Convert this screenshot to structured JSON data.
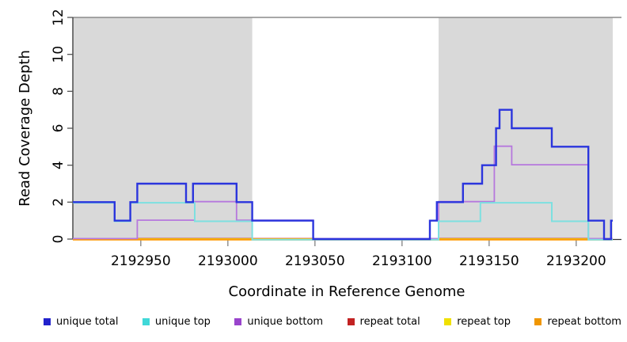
{
  "chart_data": {
    "type": "line",
    "subtype": "step-post",
    "title": "",
    "xlabel": "Coordinate in Reference Genome",
    "ylabel": "Read Coverage Depth",
    "xlim": [
      2192911,
      2193226
    ],
    "ylim": [
      0,
      12
    ],
    "x_ticks": [
      2192950,
      2193000,
      2193050,
      2193100,
      2193150,
      2193200
    ],
    "y_ticks": [
      0,
      2,
      4,
      6,
      8,
      10,
      12
    ],
    "grid": false,
    "legend_position": "bottom",
    "background": "#ffffff",
    "shaded_regions": [
      {
        "x_start": 2192911,
        "x_end": 2193014,
        "color": "#d9d9d9"
      },
      {
        "x_start": 2193121,
        "x_end": 2193221,
        "color": "#d9d9d9"
      }
    ],
    "series": [
      {
        "name": "repeat total",
        "color": "#cc2222",
        "line_width": 1.8,
        "points": [
          [
            2192911,
            0
          ],
          [
            2193221,
            0
          ]
        ]
      },
      {
        "name": "repeat top",
        "color": "#f2e100",
        "line_width": 1.8,
        "points": [
          [
            2192911,
            0
          ],
          [
            2193221,
            0
          ]
        ]
      },
      {
        "name": "repeat bottom",
        "color": "#ff9800",
        "line_width": 1.8,
        "points": [
          [
            2192911,
            0
          ],
          [
            2193221,
            0
          ]
        ]
      },
      {
        "name": "unique bottom",
        "color": "#b678dd",
        "line_width": 1.8,
        "points": [
          [
            2192911,
            0
          ],
          [
            2192948,
            1
          ],
          [
            2192981,
            2
          ],
          [
            2193005,
            1
          ],
          [
            2193049,
            0
          ],
          [
            2193121,
            2
          ],
          [
            2193153,
            5
          ],
          [
            2193163,
            4
          ],
          [
            2193207,
            0
          ],
          [
            2193221,
            0
          ]
        ]
      },
      {
        "name": "unique top",
        "color": "#7de0e0",
        "line_width": 2,
        "points": [
          [
            2192911,
            2
          ],
          [
            2192935,
            1
          ],
          [
            2192944,
            2
          ],
          [
            2192981,
            1
          ],
          [
            2193014,
            0
          ],
          [
            2193121,
            1
          ],
          [
            2193145,
            2
          ],
          [
            2193186,
            1
          ],
          [
            2193207,
            0
          ],
          [
            2193221,
            0
          ]
        ]
      },
      {
        "name": "unique total",
        "color": "#2b35dd",
        "line_width": 2.4,
        "points": [
          [
            2192911,
            2
          ],
          [
            2192935,
            1
          ],
          [
            2192944,
            2
          ],
          [
            2192948,
            3
          ],
          [
            2192976,
            2
          ],
          [
            2192980,
            3
          ],
          [
            2193005,
            2
          ],
          [
            2193014,
            1
          ],
          [
            2193049,
            0
          ],
          [
            2193116,
            1
          ],
          [
            2193120,
            2
          ],
          [
            2193135,
            3
          ],
          [
            2193146,
            4
          ],
          [
            2193154,
            6
          ],
          [
            2193156,
            7
          ],
          [
            2193163,
            6
          ],
          [
            2193186,
            5
          ],
          [
            2193207,
            1
          ],
          [
            2193216,
            0
          ],
          [
            2193220,
            1
          ],
          [
            2193221,
            1
          ]
        ]
      }
    ]
  },
  "legend": {
    "items": [
      {
        "label": "unique total",
        "color": "#2222cc"
      },
      {
        "label": "unique top",
        "color": "#40d8d8"
      },
      {
        "label": "unique bottom",
        "color": "#9944cc"
      },
      {
        "label": "repeat total",
        "color": "#c22222"
      },
      {
        "label": "repeat top",
        "color": "#f0e000"
      },
      {
        "label": "repeat bottom",
        "color": "#f09600"
      }
    ]
  }
}
